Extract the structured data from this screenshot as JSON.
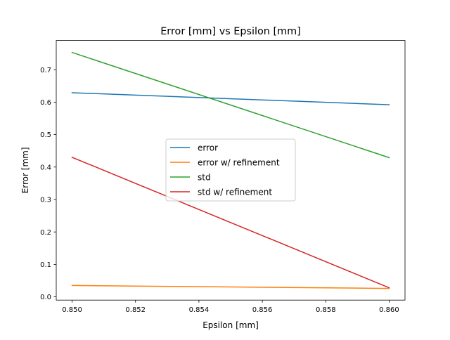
{
  "chart_data": {
    "type": "line",
    "title": "Error [mm] vs Epsilon [mm]",
    "xlabel": "Epsilon [mm]",
    "ylabel": "Error [mm]",
    "xlim": [
      0.8495,
      0.8605
    ],
    "ylim": [
      -0.01,
      0.79
    ],
    "x_ticks": [
      "0.850",
      "0.852",
      "0.854",
      "0.856",
      "0.858",
      "0.860"
    ],
    "y_ticks": [
      "0.0",
      "0.1",
      "0.2",
      "0.3",
      "0.4",
      "0.5",
      "0.6",
      "0.7"
    ],
    "grid": false,
    "legend_position": "center",
    "x": [
      0.85,
      0.86
    ],
    "series": [
      {
        "name": "error",
        "color": "#1f77b4",
        "values": [
          0.629,
          0.592
        ]
      },
      {
        "name": "error w/ refinement",
        "color": "#ff7f0e",
        "values": [
          0.035,
          0.026
        ]
      },
      {
        "name": "std",
        "color": "#2ca02c",
        "values": [
          0.753,
          0.429
        ]
      },
      {
        "name": "std w/ refinement",
        "color": "#d62728",
        "values": [
          0.43,
          0.028
        ]
      }
    ]
  }
}
